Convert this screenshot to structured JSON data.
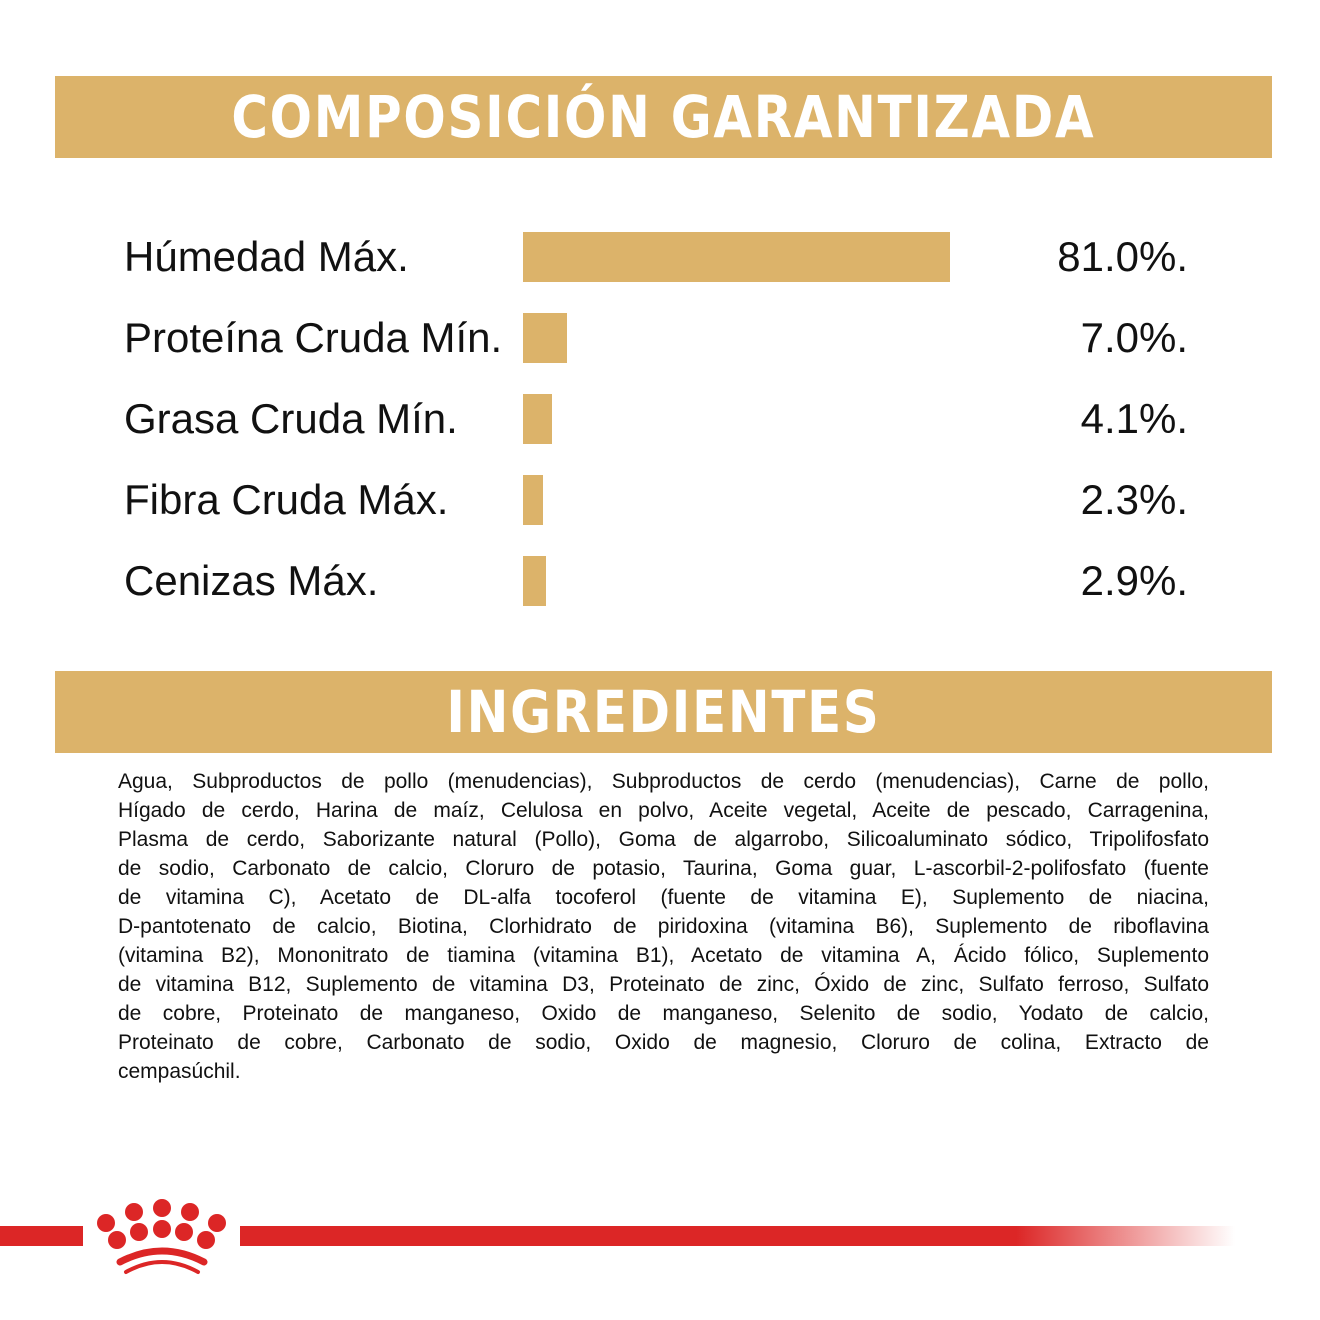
{
  "composition": {
    "title": "COMPOSICIÓN GARANTIZADA"
  },
  "chart_data": {
    "type": "bar",
    "orientation": "horizontal",
    "categories": [
      "Húmedad Máx.",
      "Proteína Cruda Mín.",
      "Grasa Cruda Mín.",
      "Fibra Cruda Máx.",
      "Cenizas Máx."
    ],
    "values": [
      81.0,
      7.0,
      4.1,
      2.3,
      2.9
    ],
    "value_labels": [
      "81.0%.",
      "7.0%.",
      "4.1%.",
      "2.3%.",
      "2.9%."
    ],
    "bar_color": "#dcb36a",
    "grid": false
  },
  "ingredients": {
    "title": "INGREDIENTES",
    "lines": [
      "Agua, Subproductos de pollo (menudencias), Subproductos de cerdo (menudencias), Carne de pollo,",
      "Hígado de cerdo, Harina de maíz, Celulosa en polvo, Aceite vegetal, Aceite de pescado, Carragenina,",
      "Plasma de cerdo, Saborizante natural (Pollo), Goma de algarrobo, Silicoaluminato sódico, Tripolifosfato",
      "de sodio, Carbonato de calcio, Cloruro de potasio, Taurina, Goma guar, L-ascorbil-2-polifosfato (fuente",
      "de vitamina C), Acetato de DL-alfa tocoferol (fuente de vitamina E), Suplemento de niacina,",
      "D-pantotenato de calcio, Biotina, Clorhidrato de piridoxina (vitamina B6), Suplemento de riboflavina",
      "(vitamina B2), Mononitrato de tiamina (vitamina B1), Acetato de vitamina A, Ácido fólico, Suplemento",
      "de vitamina B12, Suplemento de vitamina D3, Proteinato de zinc, Óxido de zinc, Sulfato ferroso, Sulfato",
      "de cobre, Proteinato de manganeso, Oxido de manganeso, Selenito de sodio, Yodato de calcio,",
      "Proteinato de cobre, Carbonato de sodio, Oxido de magnesio, Cloruro de colina, Extracto de",
      "cempasúchil."
    ]
  },
  "footer": {
    "brand_color": "#dc2626",
    "logo": "crown-icon"
  }
}
